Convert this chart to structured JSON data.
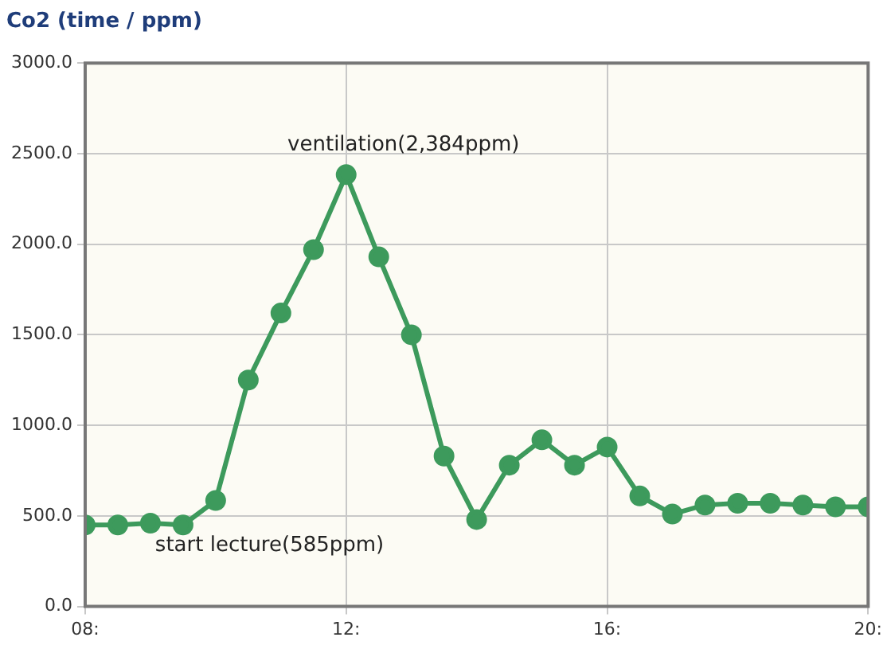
{
  "chart_data": {
    "type": "line",
    "title": "Co2 (time / ppm)",
    "x": [
      8,
      8.5,
      9,
      9.5,
      10,
      10.5,
      11,
      11.5,
      12,
      12.5,
      13,
      13.5,
      14,
      14.5,
      15,
      15.5,
      16,
      16.5,
      17,
      17.5,
      18,
      18.5,
      19,
      19.5,
      20
    ],
    "series": [
      {
        "color": "#3d9a5c",
        "values": [
          450,
          450,
          460,
          450,
          585,
          1250,
          1620,
          1970,
          2384,
          1930,
          1500,
          830,
          480,
          780,
          920,
          780,
          880,
          610,
          510,
          560,
          570,
          570,
          560,
          550,
          550
        ]
      }
    ],
    "xlim": [
      8,
      20
    ],
    "xticks": [
      {
        "value": 8,
        "label": "08:"
      },
      {
        "value": 12,
        "label": "12:"
      },
      {
        "value": 16,
        "label": "16:"
      },
      {
        "value": 20,
        "label": "20:"
      }
    ],
    "ylim": [
      0,
      3000
    ],
    "yticks": [
      {
        "value": 0,
        "label": "0.0"
      },
      {
        "value": 500,
        "label": "500.0"
      },
      {
        "value": 1000,
        "label": "1000.0"
      },
      {
        "value": 1500,
        "label": "1500.0"
      },
      {
        "value": 2000,
        "label": "2000.0"
      },
      {
        "value": 2500,
        "label": "2500.0"
      },
      {
        "value": 3000,
        "label": "3000.0"
      }
    ],
    "annotations": [
      {
        "text": "ventilation(2,384ppm)",
        "x": 12,
        "y": 2384
      },
      {
        "text": "start lecture(585ppm)",
        "x": 10,
        "y": 585
      }
    ],
    "grid": true,
    "marker": "circle",
    "line_style": "solid",
    "legend": false
  }
}
